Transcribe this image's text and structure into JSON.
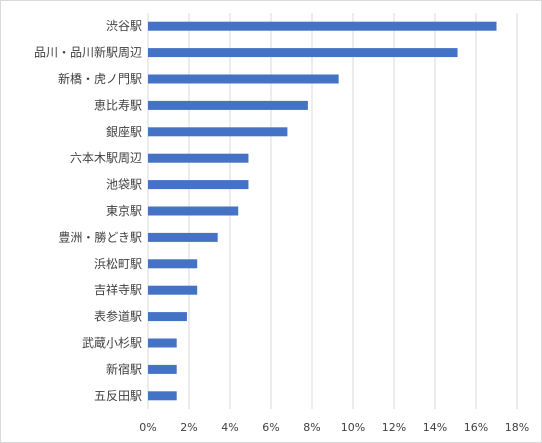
{
  "chart_data": {
    "type": "bar",
    "orientation": "horizontal",
    "categories": [
      "渋谷駅",
      "品川・品川新駅周辺",
      "新橋・虎ノ門駅",
      "恵比寿駅",
      "銀座駅",
      "六本木駅周辺",
      "池袋駅",
      "東京駅",
      "豊洲・勝どき駅",
      "浜松町駅",
      "吉祥寺駅",
      "表参道駅",
      "武蔵小杉駅",
      "新宿駅",
      "五反田駅"
    ],
    "values": [
      17.0,
      15.1,
      9.3,
      7.8,
      6.8,
      4.9,
      4.9,
      4.4,
      3.4,
      2.4,
      2.4,
      1.9,
      1.4,
      1.4,
      1.4
    ],
    "value_unit": "%",
    "xlim": [
      0,
      18
    ],
    "xticks": [
      0,
      2,
      4,
      6,
      8,
      10,
      12,
      14,
      16,
      18
    ],
    "xtick_labels": [
      "0%",
      "2%",
      "4%",
      "6%",
      "8%",
      "10%",
      "12%",
      "14%",
      "16%",
      "18%"
    ],
    "bar_color": "#4472C4",
    "grid": "vertical",
    "legend": "none",
    "title": "",
    "xlabel": "",
    "ylabel": ""
  }
}
